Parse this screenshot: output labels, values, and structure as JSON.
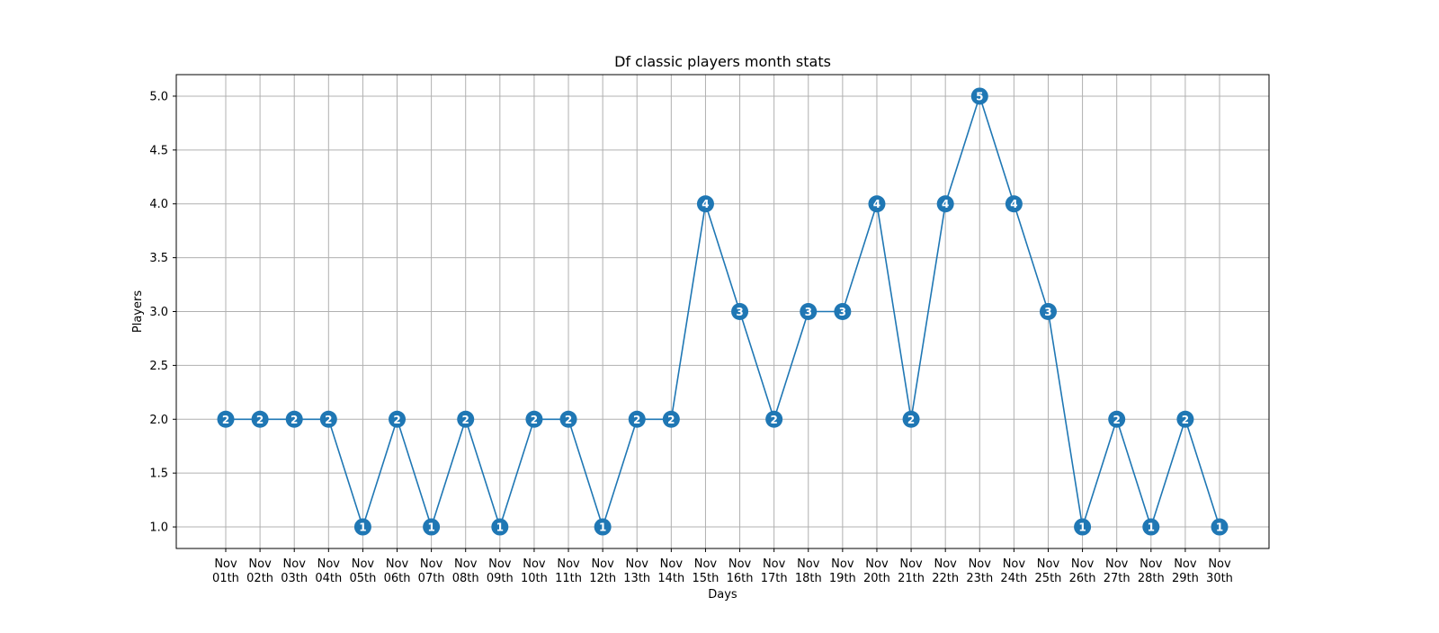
{
  "chart_data": {
    "type": "line",
    "title": "Df classic players month stats",
    "xlabel": "Days",
    "ylabel": "Players",
    "categories": [
      "Nov 01th",
      "Nov 02th",
      "Nov 03th",
      "Nov 04th",
      "Nov 05th",
      "Nov 06th",
      "Nov 07th",
      "Nov 08th",
      "Nov 09th",
      "Nov 10th",
      "Nov 11th",
      "Nov 12th",
      "Nov 13th",
      "Nov 14th",
      "Nov 15th",
      "Nov 16th",
      "Nov 17th",
      "Nov 18th",
      "Nov 19th",
      "Nov 20th",
      "Nov 21th",
      "Nov 22th",
      "Nov 23th",
      "Nov 24th",
      "Nov 25th",
      "Nov 26th",
      "Nov 27th",
      "Nov 28th",
      "Nov 29th",
      "Nov 30th"
    ],
    "series": [
      {
        "values": [
          2,
          2,
          2,
          2,
          1,
          2,
          1,
          2,
          1,
          2,
          2,
          1,
          2,
          2,
          4,
          3,
          2,
          3,
          3,
          4,
          2,
          4,
          5,
          4,
          3,
          1,
          2,
          1,
          2,
          1
        ],
        "color": "#1f77b4"
      }
    ],
    "y_ticks": [
      "1.0",
      "1.5",
      "2.0",
      "2.5",
      "3.0",
      "3.5",
      "4.0",
      "4.5",
      "5.0"
    ],
    "ylim": [
      0.8,
      5.2
    ],
    "grid": true,
    "data_labels": true
  }
}
